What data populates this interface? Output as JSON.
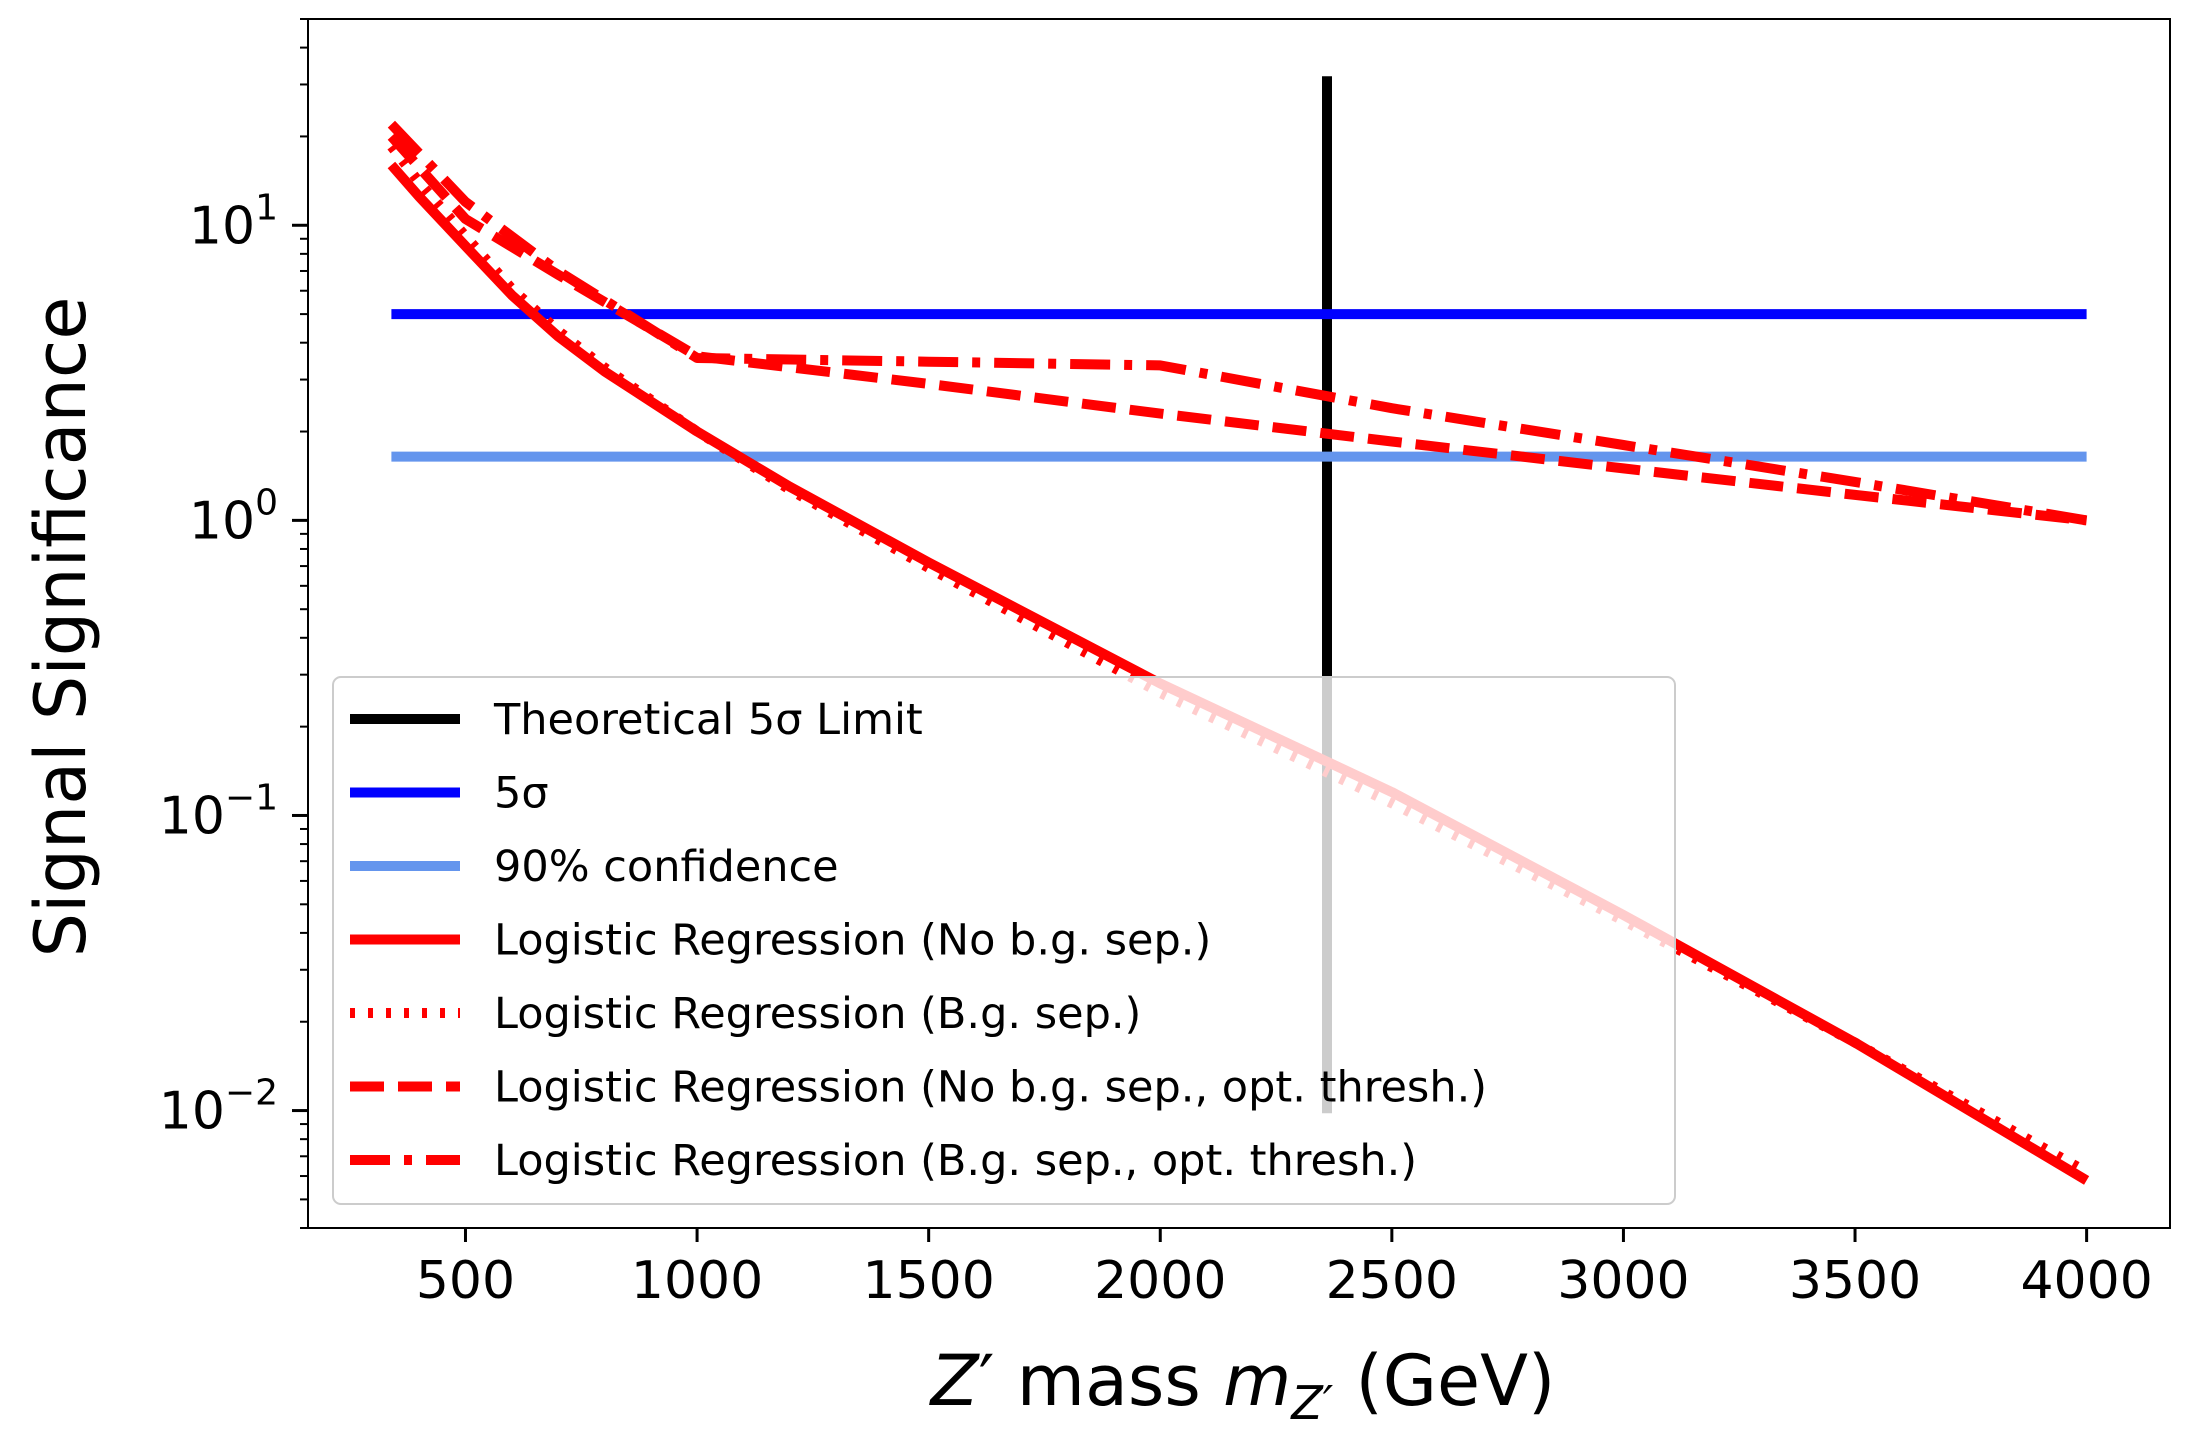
{
  "chart_data": {
    "type": "line",
    "title": "",
    "xlabel": "Z′ mass m_{Z′} (GeV)",
    "xlabel_parts": {
      "z": "Z",
      "prime": "′",
      "mid": " mass ",
      "m": "m",
      "sub": "Z′",
      "unit": " (GeV)"
    },
    "ylabel": "Signal Significance",
    "xscale": "linear",
    "yscale": "log",
    "xlim": [
      160,
      4180
    ],
    "ylim": [
      0.004,
      50
    ],
    "xticks": [
      500,
      1000,
      1500,
      2000,
      2500,
      3000,
      3500,
      4000
    ],
    "xtick_labels": [
      "500",
      "1000",
      "1500",
      "2000",
      "2500",
      "3000",
      "3500",
      "4000"
    ],
    "yticks": [
      {
        "value": 10,
        "base": "10",
        "exp": "1"
      },
      {
        "value": 1,
        "base": "10",
        "exp": "0"
      },
      {
        "value": 0.1,
        "base": "10",
        "exp": "−1"
      },
      {
        "value": 0.01,
        "base": "10",
        "exp": "−2"
      }
    ],
    "legend_position": "lower-left",
    "grid": false,
    "series": [
      {
        "name": "Theoretical 5σ Limit",
        "color": "#000000",
        "style": "solid",
        "x": [
          2360,
          2360
        ],
        "y": [
          32,
          0.0098
        ]
      },
      {
        "name": "5σ",
        "color": "#0000ff",
        "style": "solid",
        "x": [
          340,
          4000
        ],
        "y": [
          5,
          5
        ]
      },
      {
        "name": "90% confidence",
        "color": "#6495ed",
        "style": "solid",
        "x": [
          340,
          4000
        ],
        "y": [
          1.645,
          1.645
        ]
      },
      {
        "name": "Logistic Regression (No b.g. sep.)",
        "color": "#ff0000",
        "style": "solid",
        "x": [
          340,
          400,
          500,
          600,
          700,
          800,
          1000,
          1200,
          1500,
          2000,
          2500,
          3000,
          3500,
          4000
        ],
        "y": [
          16,
          12.5,
          8.5,
          5.8,
          4.2,
          3.2,
          2.0,
          1.3,
          0.72,
          0.28,
          0.12,
          0.046,
          0.017,
          0.0058
        ]
      },
      {
        "name": "Logistic Regression (B.g. sep.)",
        "color": "#ff0000",
        "style": "dotted",
        "x": [
          340,
          400,
          500,
          600,
          700,
          800,
          1000,
          1200,
          1500,
          2000,
          2500,
          3000,
          3500,
          4000
        ],
        "y": [
          18.5,
          14,
          9.2,
          6.1,
          4.4,
          3.3,
          2.0,
          1.27,
          0.69,
          0.26,
          0.11,
          0.044,
          0.017,
          0.0062
        ]
      },
      {
        "name": "Logistic Regression (No b.g. sep., opt. thresh.)",
        "color": "#ff0000",
        "style": "dashed",
        "x": [
          340,
          500,
          700,
          1000,
          1500,
          2000,
          2500,
          3000,
          3500,
          4000
        ],
        "y": [
          20,
          10.5,
          6.8,
          3.6,
          2.9,
          2.3,
          1.85,
          1.5,
          1.22,
          1.0
        ]
      },
      {
        "name": "Logistic Regression (B.g. sep., opt. thresh.)",
        "color": "#ff0000",
        "style": "dashdot",
        "x": [
          340,
          500,
          700,
          1000,
          1500,
          2000,
          2500,
          3000,
          3500,
          4000
        ],
        "y": [
          22,
          12,
          7.0,
          3.55,
          3.45,
          3.35,
          2.4,
          1.8,
          1.35,
          1.0
        ]
      }
    ]
  }
}
